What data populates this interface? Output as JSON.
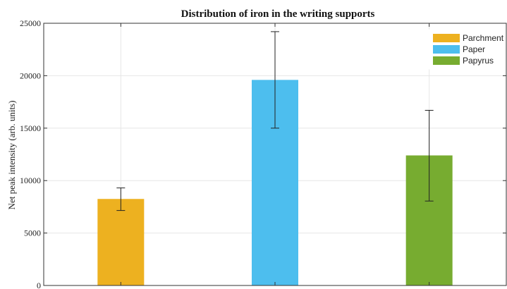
{
  "chart_data": {
    "type": "bar",
    "title": "Distribution of iron in the writing supports",
    "ylabel": "Net peak intensity (arb. units)",
    "xlabel": "",
    "ylim": [
      0,
      25000
    ],
    "yticks": [
      0,
      5000,
      10000,
      15000,
      20000,
      25000
    ],
    "grid": true,
    "legend_position": "top-right",
    "series": [
      {
        "name": "Parchment",
        "value": 8250,
        "err_low": 7150,
        "err_high": 9300,
        "color": "#EDB120"
      },
      {
        "name": "Paper",
        "value": 19600,
        "err_low": 15000,
        "err_high": 24200,
        "color": "#4DBEEE"
      },
      {
        "name": "Papyrus",
        "value": 12400,
        "err_low": 8050,
        "err_high": 16700,
        "color": "#77AC30"
      }
    ]
  }
}
